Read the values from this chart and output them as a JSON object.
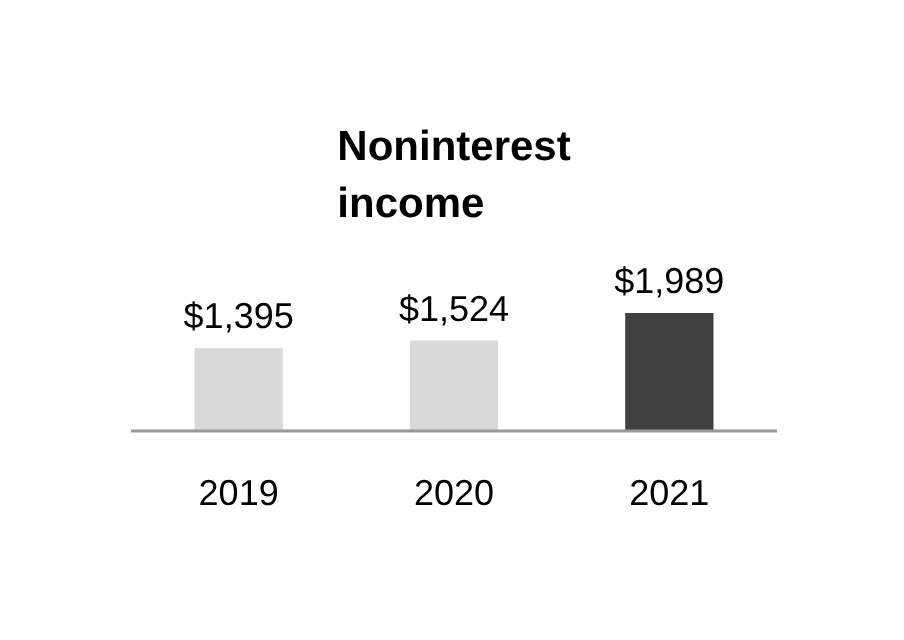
{
  "chart_data": {
    "type": "bar",
    "title": "Noninterest income",
    "categories": [
      "2019",
      "2020",
      "2021"
    ],
    "values": [
      1395,
      1524,
      1989
    ],
    "value_labels": [
      "$1,395",
      "$1,524",
      "$1,989"
    ],
    "colors": [
      "#d9d9d9",
      "#d9d9d9",
      "#404040"
    ]
  }
}
